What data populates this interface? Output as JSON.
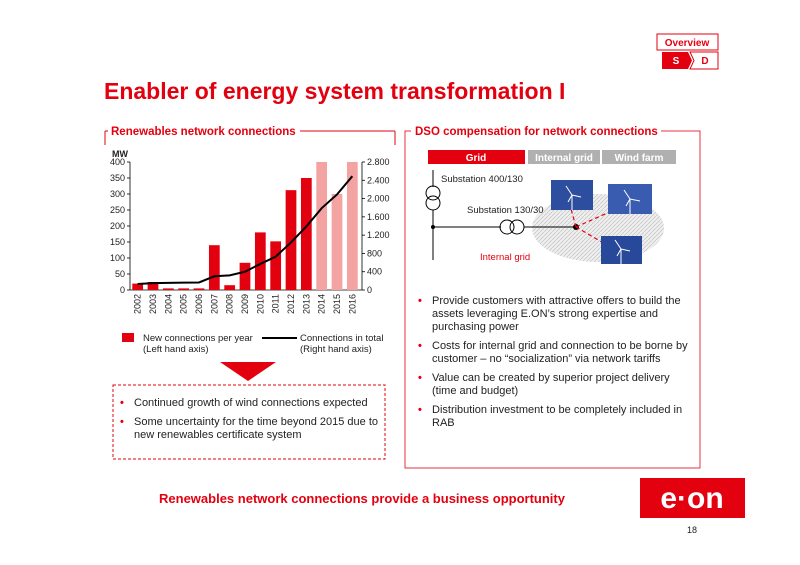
{
  "header": {
    "tab": "Overview",
    "steps": [
      "S",
      "D"
    ],
    "title": "Enabler of energy system transformation I"
  },
  "left_panel": {
    "heading": "Renewables network connections",
    "bullets": [
      "Continued growth of wind connections expected",
      "Some uncertainty for the time beyond 2015 due to new renewables certificate system"
    ]
  },
  "chart_data": {
    "type": "bar",
    "y_label": "MW",
    "categories": [
      "2002",
      "2003",
      "2004",
      "2005",
      "2006",
      "2007",
      "2008",
      "2009",
      "2010",
      "2011",
      "2012",
      "2013",
      "2014",
      "2015",
      "2016"
    ],
    "series": [
      {
        "name": "New connections per year (Left hand axis)",
        "values": [
          20,
          25,
          5,
          5,
          5,
          140,
          15,
          85,
          180,
          152,
          312,
          350,
          400,
          300,
          400
        ],
        "colors": [
          "#e3000f",
          "#e3000f",
          "#e3000f",
          "#e3000f",
          "#e3000f",
          "#e3000f",
          "#e3000f",
          "#e3000f",
          "#e3000f",
          "#e3000f",
          "#e3000f",
          "#e3000f",
          "#f4a3a3",
          "#f4a3a3",
          "#f4a3a3"
        ]
      },
      {
        "name": "Connections in total (Right hand axis)",
        "type": "line",
        "axis": "y2",
        "color": "#000000",
        "values": [
          130,
          150,
          155,
          160,
          165,
          300,
          320,
          400,
          570,
          730,
          1040,
          1390,
          1790,
          2090,
          2490
        ]
      }
    ],
    "ylim": [
      0,
      400
    ],
    "yticks": [
      0,
      50,
      100,
      150,
      200,
      250,
      300,
      350,
      400
    ],
    "y2lim": [
      0,
      2800
    ],
    "y2ticks": [
      0,
      400,
      800,
      {
        "value": 1200,
        "label": "1.200"
      },
      {
        "value": 1600,
        "label": "1.600"
      },
      {
        "value": 2000,
        "label": "2.000"
      },
      {
        "value": 2400,
        "label": "2.400"
      },
      {
        "value": 2800,
        "label": "2.800"
      }
    ]
  },
  "right_panel": {
    "heading": "DSO compensation for network connections",
    "diagram": {
      "columns": [
        "Grid",
        "Internal grid",
        "Wind farm"
      ],
      "substation_high": "Substation 400/130",
      "substation_low": "Substation 130/30",
      "internal_grid": "Internal grid"
    },
    "bullets": [
      "Provide customers with attractive offers to build the assets leveraging E.ON’s strong expertise and purchasing power",
      "Costs for internal grid and connection to be borne by customer – no “socialization” via network tariffs",
      "Value can be created by superior project delivery (time and budget)",
      "Distribution investment to be completely included in RAB"
    ]
  },
  "footer": {
    "message": "Renewables network connections provide a business opportunity",
    "logo": "e·on",
    "page": "18"
  }
}
